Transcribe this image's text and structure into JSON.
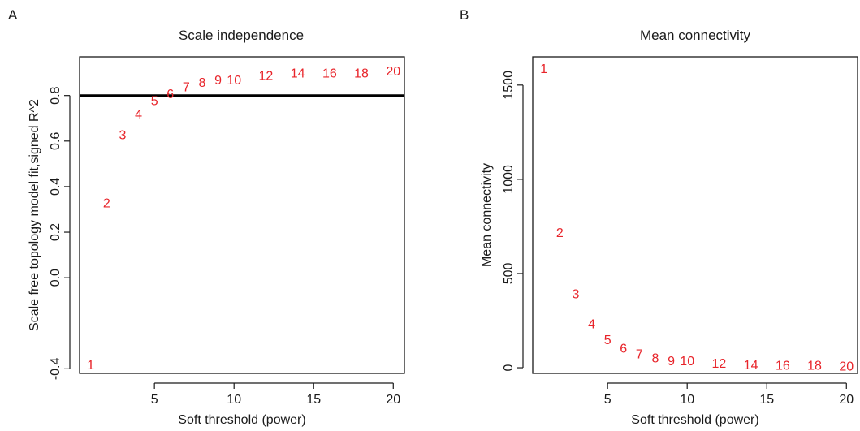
{
  "colors": {
    "label": "#e8242a",
    "axis": "#1a1a1a",
    "threshold_line": "#000000"
  },
  "chart_data": [
    {
      "panel_letter": "A",
      "type": "scatter",
      "title": "Scale independence",
      "xlabel": "Soft threshold (power)",
      "ylabel": "Scale free topology model fit,signed R^2",
      "xlim": [
        0.3,
        20.7
      ],
      "ylim": [
        -0.42,
        0.97
      ],
      "xticks": [
        5,
        10,
        15,
        20
      ],
      "yticks": [
        -0.4,
        0.0,
        0.2,
        0.4,
        0.6,
        0.8
      ],
      "ytick_labels": [
        "-0.4",
        "0.0",
        "0.2",
        "0.4",
        "0.6",
        "0.8"
      ],
      "grid": false,
      "hline": 0.8,
      "points": [
        {
          "x": 1,
          "y": -0.38,
          "label": "1"
        },
        {
          "x": 2,
          "y": 0.33,
          "label": "2"
        },
        {
          "x": 3,
          "y": 0.63,
          "label": "3"
        },
        {
          "x": 4,
          "y": 0.72,
          "label": "4"
        },
        {
          "x": 5,
          "y": 0.78,
          "label": "5"
        },
        {
          "x": 6,
          "y": 0.81,
          "label": "6"
        },
        {
          "x": 7,
          "y": 0.84,
          "label": "7"
        },
        {
          "x": 8,
          "y": 0.86,
          "label": "8"
        },
        {
          "x": 9,
          "y": 0.87,
          "label": "9"
        },
        {
          "x": 10,
          "y": 0.87,
          "label": "10"
        },
        {
          "x": 12,
          "y": 0.89,
          "label": "12"
        },
        {
          "x": 14,
          "y": 0.9,
          "label": "14"
        },
        {
          "x": 16,
          "y": 0.9,
          "label": "16"
        },
        {
          "x": 18,
          "y": 0.9,
          "label": "18"
        },
        {
          "x": 20,
          "y": 0.91,
          "label": "20"
        }
      ]
    },
    {
      "panel_letter": "B",
      "type": "scatter",
      "title": "Mean connectivity",
      "xlabel": "Soft threshold (power)",
      "ylabel": "Mean connectivity",
      "xlim": [
        0.3,
        20.7
      ],
      "ylim": [
        -30,
        1650
      ],
      "xticks": [
        5,
        10,
        15,
        20
      ],
      "yticks": [
        0,
        500,
        1000,
        1500
      ],
      "ytick_labels": [
        "0",
        "500",
        "1000",
        "1500"
      ],
      "grid": false,
      "points": [
        {
          "x": 1,
          "y": 1590,
          "label": "1"
        },
        {
          "x": 2,
          "y": 720,
          "label": "2"
        },
        {
          "x": 3,
          "y": 395,
          "label": "3"
        },
        {
          "x": 4,
          "y": 235,
          "label": "4"
        },
        {
          "x": 5,
          "y": 150,
          "label": "5"
        },
        {
          "x": 6,
          "y": 105,
          "label": "6"
        },
        {
          "x": 7,
          "y": 75,
          "label": "7"
        },
        {
          "x": 8,
          "y": 55,
          "label": "8"
        },
        {
          "x": 9,
          "y": 40,
          "label": "9"
        },
        {
          "x": 10,
          "y": 40,
          "label": "10"
        },
        {
          "x": 12,
          "y": 25,
          "label": "12"
        },
        {
          "x": 14,
          "y": 18,
          "label": "14"
        },
        {
          "x": 16,
          "y": 15,
          "label": "16"
        },
        {
          "x": 18,
          "y": 15,
          "label": "18"
        },
        {
          "x": 20,
          "y": 12,
          "label": "20"
        }
      ]
    }
  ]
}
